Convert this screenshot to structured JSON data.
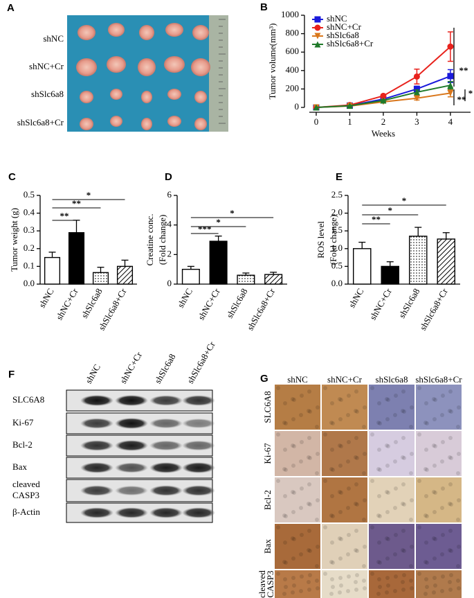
{
  "panel_labels": [
    "A",
    "B",
    "C",
    "D",
    "E",
    "F",
    "G"
  ],
  "photo": {
    "rows": [
      "shNC",
      "shNC+Cr",
      "shSlc6a8",
      "shSlc6a8+Cr"
    ]
  },
  "chart_data": [
    {
      "type": "line",
      "ylabel": "Tumor volume(mm³)",
      "xlabel": "Weeks",
      "x": [
        0,
        1,
        2,
        3,
        4
      ],
      "xlim": [
        -0.35,
        4.6
      ],
      "xticks": [
        0,
        1,
        2,
        3,
        4
      ],
      "ylim": [
        0,
        1000
      ],
      "yticks": [
        0,
        200,
        400,
        600,
        800,
        1000
      ],
      "legend": "upper left",
      "series": [
        {
          "name": "shNC",
          "color": "#1a1adb",
          "marker": "square",
          "values": [
            0,
            20,
            90,
            200,
            340
          ],
          "errors": [
            0,
            5,
            12,
            30,
            70
          ]
        },
        {
          "name": "shNC+Cr",
          "color": "#e8221c",
          "marker": "circle",
          "values": [
            0,
            25,
            125,
            335,
            660
          ],
          "errors": [
            0,
            5,
            15,
            80,
            160
          ]
        },
        {
          "name": "shSlc6a8",
          "color": "#d9771c",
          "marker": "triangle-down",
          "values": [
            0,
            15,
            60,
            100,
            155
          ],
          "errors": [
            0,
            4,
            10,
            20,
            40
          ]
        },
        {
          "name": "shSlc6a8+Cr",
          "color": "#1f7a2a",
          "marker": "triangle-up",
          "values": [
            0,
            18,
            75,
            165,
            240
          ],
          "errors": [
            0,
            4,
            10,
            25,
            40
          ]
        }
      ],
      "annotations": [
        "**",
        "**",
        "*"
      ]
    },
    {
      "type": "bar",
      "ylabel": "Tumor weight (g)",
      "categories": [
        "shNC",
        "shNC+Cr",
        "shSlc6a8",
        "shSlc6a8+Cr"
      ],
      "values": [
        0.15,
        0.29,
        0.065,
        0.1
      ],
      "errors": [
        0.03,
        0.07,
        0.03,
        0.035
      ],
      "patterns": [
        "none",
        "solid",
        "dots",
        "hatch"
      ],
      "color": "#000000",
      "ylim": [
        0,
        0.5
      ],
      "yticks": [
        {
          "value": 0,
          "label": "0.0"
        },
        0.1,
        0.2,
        0.3,
        0.4,
        0.5
      ],
      "annotations": [
        "**",
        "**",
        "*"
      ]
    },
    {
      "type": "bar",
      "ylabel": [
        "Creatine conc.",
        "(Fold change)"
      ],
      "categories": [
        "shNC",
        "shNC+Cr",
        "shSlc6a8",
        "shSlc6a8+Cr"
      ],
      "values": [
        1.0,
        2.9,
        0.6,
        0.65
      ],
      "errors": [
        0.2,
        0.35,
        0.15,
        0.15
      ],
      "patterns": [
        "none",
        "solid",
        "dots",
        "hatch"
      ],
      "color": "#000000",
      "ylim": [
        0,
        6
      ],
      "yticks": [
        0,
        2,
        4,
        6
      ],
      "annotations": [
        "***",
        "*",
        "*"
      ]
    },
    {
      "type": "bar",
      "ylabel": [
        "ROS level",
        "(Fold change)"
      ],
      "categories": [
        "shNC",
        "shNC+Cr",
        "shSlc6a8",
        "shSlc6a8+Cr"
      ],
      "values": [
        1.0,
        0.5,
        1.35,
        1.27
      ],
      "errors": [
        0.18,
        0.13,
        0.25,
        0.18
      ],
      "patterns": [
        "none",
        "solid",
        "dots",
        "hatch"
      ],
      "color": "#000000",
      "ylim": [
        0,
        2.5
      ],
      "yticks": [
        {
          "value": 0,
          "label": "0.0"
        },
        0.5,
        {
          "value": 1,
          "label": "1.0"
        },
        1.5,
        {
          "value": 2,
          "label": "2.0"
        },
        2.5
      ],
      "annotations": [
        "**",
        "*",
        "*"
      ]
    }
  ],
  "western_blot": {
    "columns": [
      "shNC",
      "shNC+Cr",
      "shSlc6a8",
      "shSlc6a8+Cr"
    ],
    "rows": [
      "SLC6A8",
      "Ki-67",
      "Bcl-2",
      "Bax",
      [
        "cleaved",
        "CASP3"
      ],
      "β-Actin"
    ]
  },
  "ihc": {
    "columns": [
      "shNC",
      "shNC+Cr",
      "shSlc6a8",
      "shSlc6a8+Cr"
    ],
    "rows": [
      "SLC6A8",
      "Ki-67",
      "Bcl-2",
      "Bax",
      [
        "cleaved",
        "CASP3"
      ]
    ]
  }
}
